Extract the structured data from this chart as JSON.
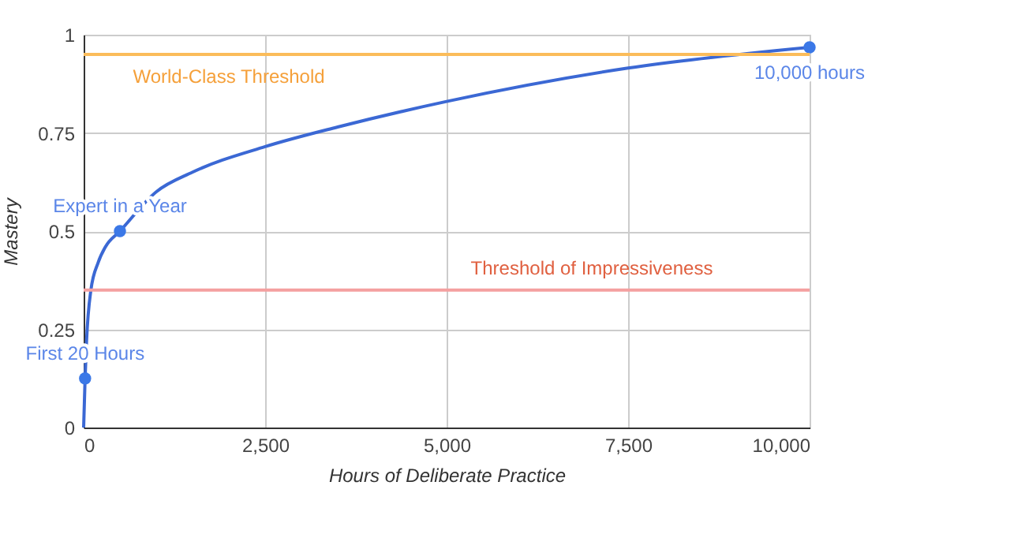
{
  "chart_data": {
    "type": "line",
    "xlabel": "Hours of Deliberate Practice",
    "ylabel": "Mastery",
    "xlim": [
      0,
      10000
    ],
    "xticks": [
      0,
      {
        "value": 2500,
        "label": "2,500"
      },
      {
        "value": 5000,
        "label": "5,000"
      },
      {
        "value": 7500,
        "label": "7,500"
      },
      {
        "value": 10000,
        "label": "10,000"
      }
    ],
    "ylim": [
      0,
      1
    ],
    "yticks": [
      0,
      0.25,
      0.5,
      0.75,
      1
    ],
    "grid": true,
    "series": [
      {
        "color": "#3b68d4",
        "marker": "none",
        "line_style": "solid",
        "x": [
          0,
          20,
          40,
          100,
          200,
          300,
          500,
          1000,
          1500,
          2500,
          3500,
          5000,
          7500,
          10000
        ],
        "values": [
          0,
          0.125,
          0.22,
          0.35,
          0.42,
          0.46,
          0.5,
          0.6,
          0.65,
          0.715,
          0.765,
          0.83,
          0.915,
          0.968
        ]
      },
      {
        "type": "scatter",
        "color": "#3b78e7",
        "marker": "circle",
        "x": [
          20,
          500,
          10000
        ],
        "values": [
          0.125,
          0.5,
          0.968
        ]
      }
    ],
    "ref_lines": [
      {
        "axis": "y",
        "value": 0.95,
        "label": "World-Class Threshold",
        "color": "#fbbc5a"
      },
      {
        "axis": "y",
        "value": 0.35,
        "label": "Threshold of Impressiveness",
        "color": "#f4a0a0"
      }
    ],
    "annotations": [
      {
        "text": "First 20 Hours",
        "x": 20,
        "y": 0.125
      },
      {
        "text": "Expert in a Year",
        "x": 500,
        "y": 0.5
      },
      {
        "text": "10,000 hours",
        "x": 10000,
        "y": 0.968
      }
    ]
  }
}
